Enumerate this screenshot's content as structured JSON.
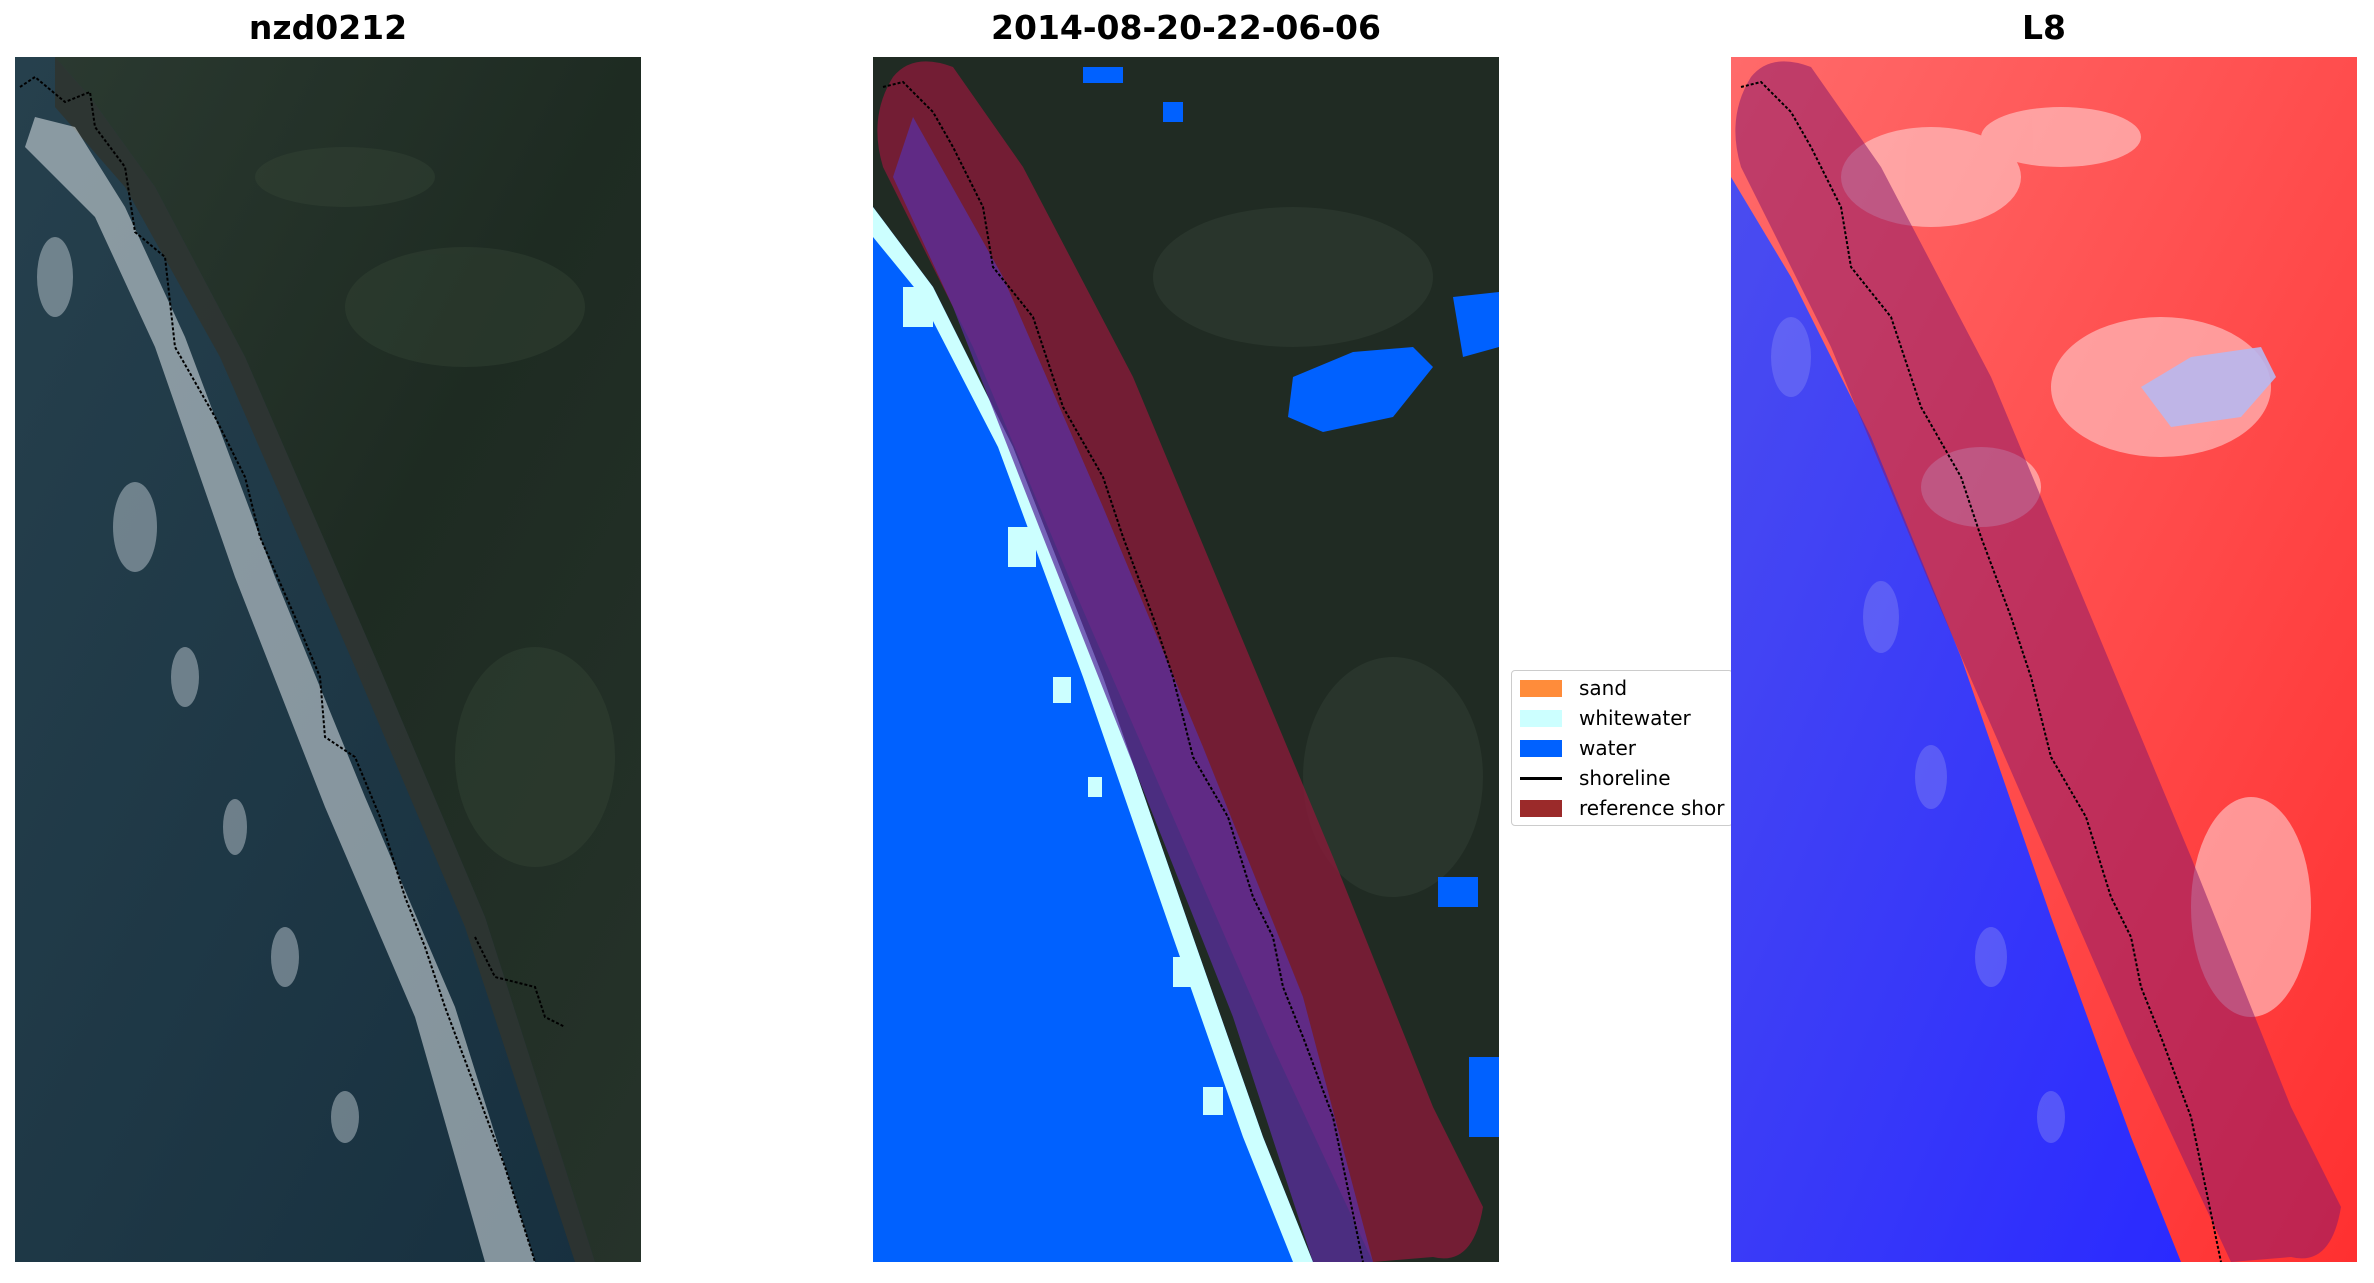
{
  "panels": [
    {
      "title": "nzd0212",
      "kind": "rgb-image"
    },
    {
      "title": "2014-08-20-22-06-06",
      "kind": "classification"
    },
    {
      "title": "L8",
      "kind": "index-image"
    }
  ],
  "legend": {
    "items": [
      {
        "label": "sand",
        "color": "#ff8c3a",
        "kind": "patch"
      },
      {
        "label": "whitewater",
        "color": "#ccffff",
        "kind": "patch"
      },
      {
        "label": "water",
        "color": "#0061ff",
        "kind": "patch"
      },
      {
        "label": "shoreline",
        "color": "#000000",
        "kind": "line"
      },
      {
        "label": "reference shor",
        "color": "#9b2a2a",
        "kind": "patch"
      }
    ]
  },
  "colors": {
    "ocean": "#1d3240",
    "land": "#1f2a22",
    "water_class": "#0061ff",
    "whitewater_class": "#ccffff",
    "reference_buffer": "#8b1a3a",
    "index_land": "#ff2a2a",
    "index_water": "#1a1aff"
  }
}
